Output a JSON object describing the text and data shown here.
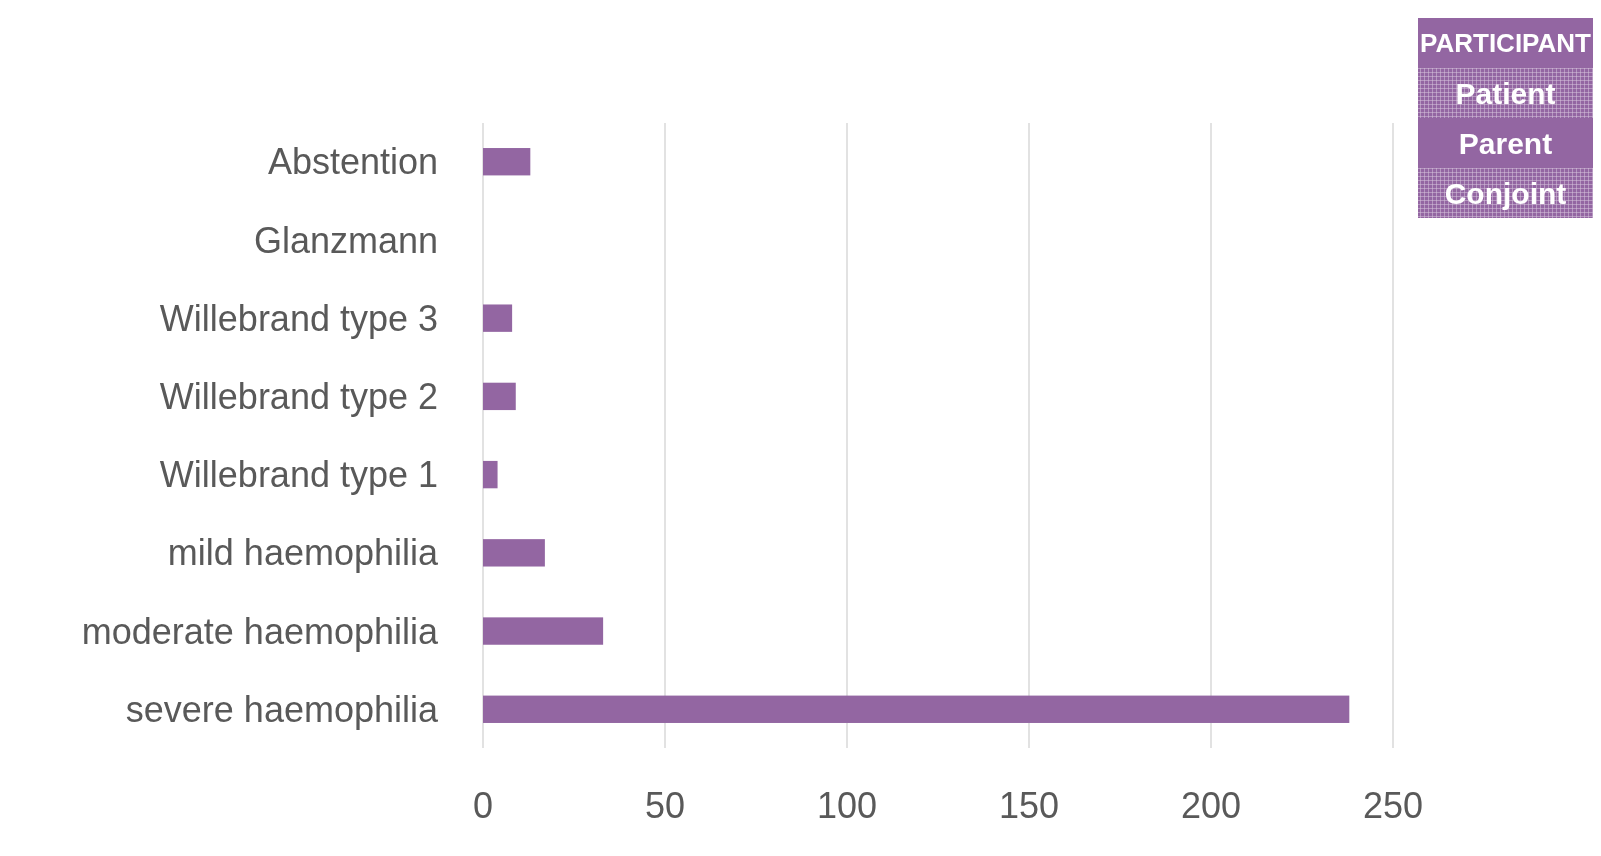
{
  "chart_data": {
    "type": "bar",
    "orientation": "horizontal",
    "categories": [
      "Abstention",
      "Glanzmann",
      "Willebrand type 3",
      "Willebrand type 2",
      "Willebrand type 1",
      "mild haemophilia",
      "moderate haemophilia",
      "severe haemophilia"
    ],
    "values": [
      13,
      0,
      8,
      9,
      4,
      17,
      33,
      238
    ],
    "color": "#9366a2",
    "xlim": [
      0,
      250
    ],
    "xticks": [
      0,
      50,
      100,
      150,
      200,
      250
    ],
    "grid": "x",
    "annotations": [
      "PARTICIPANT",
      "Patient",
      "Parent",
      "Conjoint"
    ]
  }
}
